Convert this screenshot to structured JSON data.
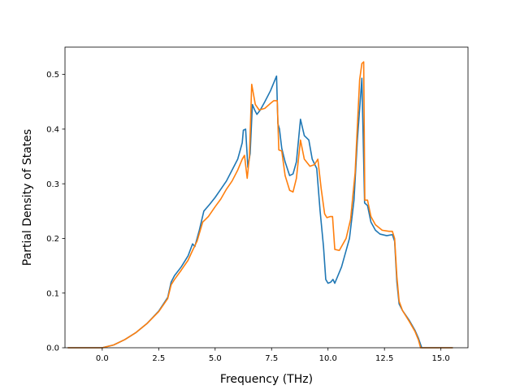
{
  "chart_data": {
    "type": "line",
    "title": "",
    "xlabel": "Frequency (THz)",
    "ylabel": "Partial Density of States",
    "xlim": [
      -1.65,
      16.2
    ],
    "ylim": [
      0,
      0.55
    ],
    "x_ticks": [
      0.0,
      2.5,
      5.0,
      7.5,
      10.0,
      12.5,
      15.0
    ],
    "x_tick_labels": [
      "0.0",
      "2.5",
      "5.0",
      "7.5",
      "10.0",
      "12.5",
      "15.0"
    ],
    "y_ticks": [
      0.0,
      0.1,
      0.2,
      0.3,
      0.4,
      0.5
    ],
    "y_tick_labels": [
      "0.0",
      "0.1",
      "0.2",
      "0.3",
      "0.4",
      "0.5"
    ],
    "grid": false,
    "legend": "none",
    "series": [
      {
        "color": "#1f77b4",
        "points": [
          [
            -1.5,
            0
          ],
          [
            0.0,
            0
          ],
          [
            0.5,
            0.005
          ],
          [
            1.0,
            0.015
          ],
          [
            1.5,
            0.028
          ],
          [
            2.0,
            0.045
          ],
          [
            2.5,
            0.067
          ],
          [
            2.9,
            0.092
          ],
          [
            3.05,
            0.12
          ],
          [
            3.2,
            0.132
          ],
          [
            3.5,
            0.148
          ],
          [
            3.8,
            0.168
          ],
          [
            4.0,
            0.19
          ],
          [
            4.1,
            0.185
          ],
          [
            4.3,
            0.215
          ],
          [
            4.5,
            0.25
          ],
          [
            4.75,
            0.262
          ],
          [
            5.0,
            0.275
          ],
          [
            5.25,
            0.29
          ],
          [
            5.5,
            0.305
          ],
          [
            5.75,
            0.325
          ],
          [
            6.0,
            0.345
          ],
          [
            6.2,
            0.375
          ],
          [
            6.25,
            0.398
          ],
          [
            6.35,
            0.4
          ],
          [
            6.45,
            0.33
          ],
          [
            6.55,
            0.355
          ],
          [
            6.65,
            0.445
          ],
          [
            6.75,
            0.435
          ],
          [
            6.85,
            0.427
          ],
          [
            7.0,
            0.435
          ],
          [
            7.2,
            0.45
          ],
          [
            7.45,
            0.47
          ],
          [
            7.65,
            0.49
          ],
          [
            7.72,
            0.497
          ],
          [
            7.78,
            0.41
          ],
          [
            7.85,
            0.4
          ],
          [
            7.95,
            0.365
          ],
          [
            8.1,
            0.34
          ],
          [
            8.3,
            0.315
          ],
          [
            8.45,
            0.318
          ],
          [
            8.6,
            0.34
          ],
          [
            8.78,
            0.418
          ],
          [
            8.95,
            0.388
          ],
          [
            9.15,
            0.38
          ],
          [
            9.3,
            0.345
          ],
          [
            9.5,
            0.328
          ],
          [
            9.65,
            0.25
          ],
          [
            9.8,
            0.185
          ],
          [
            9.9,
            0.125
          ],
          [
            10.0,
            0.118
          ],
          [
            10.12,
            0.12
          ],
          [
            10.22,
            0.125
          ],
          [
            10.3,
            0.118
          ],
          [
            10.6,
            0.148
          ],
          [
            10.95,
            0.2
          ],
          [
            11.15,
            0.27
          ],
          [
            11.3,
            0.38
          ],
          [
            11.5,
            0.493
          ],
          [
            11.62,
            0.265
          ],
          [
            11.75,
            0.26
          ],
          [
            11.9,
            0.23
          ],
          [
            12.1,
            0.215
          ],
          [
            12.3,
            0.208
          ],
          [
            12.6,
            0.205
          ],
          [
            12.85,
            0.207
          ],
          [
            12.95,
            0.195
          ],
          [
            13.05,
            0.12
          ],
          [
            13.15,
            0.08
          ],
          [
            13.3,
            0.068
          ],
          [
            13.6,
            0.05
          ],
          [
            13.85,
            0.032
          ],
          [
            14.0,
            0.018
          ],
          [
            14.15,
            0.0
          ],
          [
            15.5,
            0.0
          ]
        ]
      },
      {
        "color": "#ff7f0e",
        "points": [
          [
            -1.5,
            0
          ],
          [
            0.0,
            0
          ],
          [
            0.5,
            0.005
          ],
          [
            1.0,
            0.015
          ],
          [
            1.5,
            0.028
          ],
          [
            2.0,
            0.045
          ],
          [
            2.5,
            0.066
          ],
          [
            2.9,
            0.09
          ],
          [
            3.05,
            0.115
          ],
          [
            3.2,
            0.125
          ],
          [
            3.5,
            0.142
          ],
          [
            3.8,
            0.16
          ],
          [
            4.0,
            0.178
          ],
          [
            4.2,
            0.195
          ],
          [
            4.45,
            0.23
          ],
          [
            4.7,
            0.24
          ],
          [
            5.0,
            0.258
          ],
          [
            5.25,
            0.272
          ],
          [
            5.5,
            0.29
          ],
          [
            5.75,
            0.305
          ],
          [
            6.0,
            0.325
          ],
          [
            6.2,
            0.345
          ],
          [
            6.3,
            0.352
          ],
          [
            6.42,
            0.31
          ],
          [
            6.52,
            0.35
          ],
          [
            6.62,
            0.482
          ],
          [
            6.78,
            0.445
          ],
          [
            6.95,
            0.435
          ],
          [
            7.2,
            0.438
          ],
          [
            7.45,
            0.447
          ],
          [
            7.6,
            0.452
          ],
          [
            7.75,
            0.452
          ],
          [
            7.82,
            0.362
          ],
          [
            7.95,
            0.36
          ],
          [
            8.1,
            0.315
          ],
          [
            8.3,
            0.288
          ],
          [
            8.45,
            0.285
          ],
          [
            8.6,
            0.31
          ],
          [
            8.78,
            0.38
          ],
          [
            8.95,
            0.345
          ],
          [
            9.2,
            0.332
          ],
          [
            9.4,
            0.335
          ],
          [
            9.55,
            0.345
          ],
          [
            9.7,
            0.29
          ],
          [
            9.85,
            0.245
          ],
          [
            9.95,
            0.238
          ],
          [
            10.1,
            0.24
          ],
          [
            10.2,
            0.24
          ],
          [
            10.3,
            0.18
          ],
          [
            10.5,
            0.178
          ],
          [
            10.8,
            0.2
          ],
          [
            11.0,
            0.235
          ],
          [
            11.2,
            0.32
          ],
          [
            11.4,
            0.49
          ],
          [
            11.5,
            0.52
          ],
          [
            11.58,
            0.523
          ],
          [
            11.63,
            0.27
          ],
          [
            11.75,
            0.27
          ],
          [
            11.9,
            0.24
          ],
          [
            12.1,
            0.225
          ],
          [
            12.4,
            0.215
          ],
          [
            12.7,
            0.213
          ],
          [
            12.85,
            0.213
          ],
          [
            12.95,
            0.2
          ],
          [
            13.05,
            0.13
          ],
          [
            13.15,
            0.085
          ],
          [
            13.3,
            0.068
          ],
          [
            13.6,
            0.048
          ],
          [
            13.85,
            0.03
          ],
          [
            14.0,
            0.015
          ],
          [
            14.1,
            0.0
          ],
          [
            15.5,
            0.0
          ]
        ]
      }
    ]
  }
}
